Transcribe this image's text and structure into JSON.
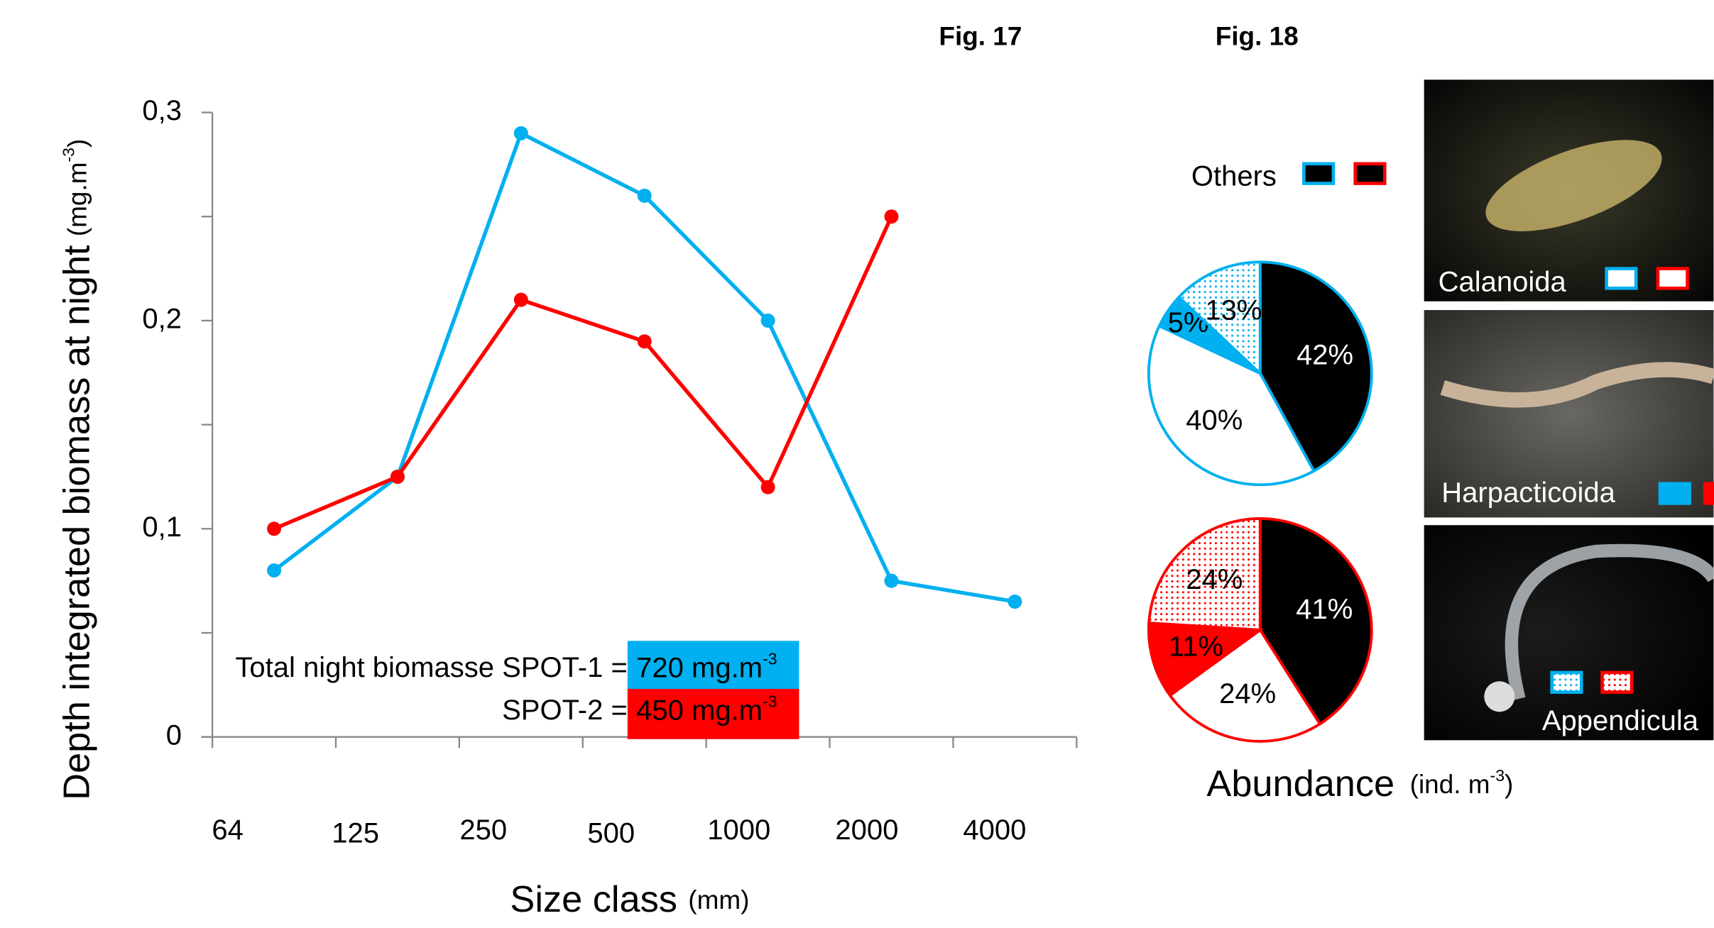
{
  "figure_labels": [
    "Fig. 17",
    "Fig. 18"
  ],
  "chart_data": [
    {
      "type": "line",
      "y_label": "Depth integrated biomass at night",
      "y_unit": [
        "(mg.m",
        "-3",
        ")"
      ],
      "x_label": "Size class",
      "x_unit": "(mm)",
      "x_labels": [
        64,
        125,
        250,
        500,
        1000,
        2000,
        4000
      ],
      "categories": [
        null,
        null,
        null,
        null,
        null,
        null,
        null
      ],
      "ylim": [
        0,
        0.3
      ],
      "yticks": [
        0,
        {
          "value": 0.1,
          "label": "0,1"
        },
        {
          "value": 0.2,
          "label": "0,2"
        },
        {
          "value": 0.3,
          "label": "0,3"
        }
      ],
      "yticks_minor": [
        0.05,
        0.15,
        0.25
      ],
      "series": [
        {
          "name": "SPOT-1",
          "color": "#00b0f0",
          "values": [
            0.08,
            0.125,
            0.29,
            0.26,
            0.2,
            0.075,
            0.065
          ]
        },
        {
          "name": "SPOT-2",
          "color": "#ff0000",
          "values": [
            0.1,
            0.125,
            0.21,
            0.19,
            0.12,
            0.25,
            null
          ]
        }
      ],
      "annotations": [
        {
          "text": "Total night biomasse SPOT-1 = ",
          "box": [
            "720 mg.m",
            "-3"
          ],
          "color": "#00b0f0"
        },
        {
          "text": "SPOT-2 = ",
          "box": [
            "450 mg.m",
            "-3"
          ],
          "color": "#ff0000"
        }
      ]
    },
    {
      "type": "pie",
      "edge_color": "#00b0f0",
      "values": [
        42,
        40,
        5,
        13
      ],
      "value_labels": [
        "42%",
        "40%",
        "5%",
        "13%"
      ],
      "colors": [
        "#000000",
        "#ffffff",
        "#00b0f0",
        "#00b0f0"
      ],
      "patterns": [
        "solid",
        "solid",
        "solid",
        "dots"
      ]
    },
    {
      "type": "pie",
      "edge_color": "#ff0000",
      "values": [
        41,
        24,
        11,
        24
      ],
      "value_labels": [
        "41%",
        "24%",
        "11%",
        "24%"
      ],
      "colors": [
        "#000000",
        "#ffffff",
        "#ff0000",
        "#ff0000"
      ],
      "patterns": [
        "solid",
        "solid",
        "solid",
        "dots"
      ]
    }
  ],
  "taxa": [
    "Others",
    "Calanoida",
    "Harpacticoida",
    "Appendicula"
  ],
  "abundance_label": "Abundance",
  "abundance_unit": [
    "(ind. m",
    "-3",
    ")"
  ]
}
